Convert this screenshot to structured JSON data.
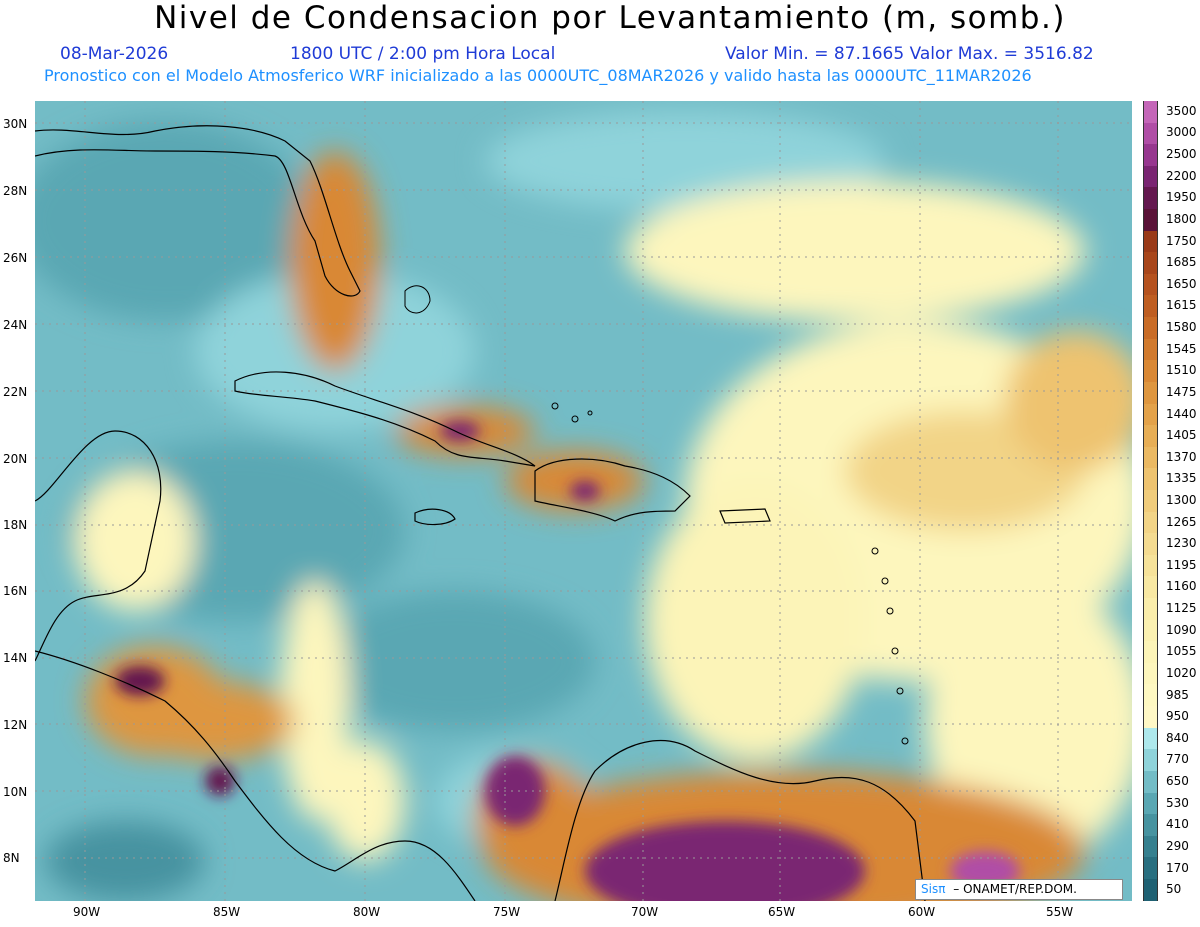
{
  "header": {
    "title": "Nivel de Condensacion por Levantamiento (m, somb.)",
    "date": "08-Mar-2026",
    "time": "1800 UTC / 2:00 pm Hora Local",
    "minmax": "Valor Min. = 87.1665   Valor Max. = 3516.82",
    "forecast": "Pronostico con el Modelo Atmosferico WRF inicializado a las 0000UTC_08MAR2026 y valido hasta las  0000UTC_11MAR2026"
  },
  "lat_labels": [
    "30N",
    "28N",
    "26N",
    "24N",
    "22N",
    "20N",
    "18N",
    "16N",
    "14N",
    "12N",
    "10N",
    "8N"
  ],
  "lon_labels": [
    "90W",
    "85W",
    "80W",
    "75W",
    "70W",
    "65W",
    "60W",
    "55W"
  ],
  "colorbar": {
    "labels": [
      "3500",
      "3000",
      "2500",
      "2200",
      "1950",
      "1800",
      "1750",
      "1685",
      "1650",
      "1615",
      "1580",
      "1545",
      "1510",
      "1475",
      "1440",
      "1405",
      "1370",
      "1335",
      "1300",
      "1265",
      "1230",
      "1195",
      "1160",
      "1125",
      "1090",
      "1055",
      "1020",
      "985",
      "950",
      "840",
      "770",
      "650",
      "530",
      "410",
      "290",
      "170",
      "50"
    ],
    "colors": [
      "#c466b8",
      "#b04ea6",
      "#97378f",
      "#7a2572",
      "#64184f",
      "#5a1237",
      "#9a3a18",
      "#a8461b",
      "#b5521f",
      "#bf5e22",
      "#c96c27",
      "#d17a2e",
      "#d98835",
      "#de963f",
      "#e3a24a",
      "#e7ae56",
      "#ebb963",
      "#eec370",
      "#f0cc7c",
      "#f2d487",
      "#f4db91",
      "#f6e29a",
      "#f8e8a3",
      "#faedab",
      "#fbf1b2",
      "#fcf4b8",
      "#fdf6bd",
      "#fef8c2",
      "#fff8c6",
      "#aee8ec",
      "#8fd3da",
      "#73bcc6",
      "#5aa7b3",
      "#4793a0",
      "#36808f",
      "#296f80",
      "#1f6173"
    ]
  },
  "badge": {
    "logo": "Sisπ",
    "text": "–  ONAMET/REP.DOM."
  }
}
